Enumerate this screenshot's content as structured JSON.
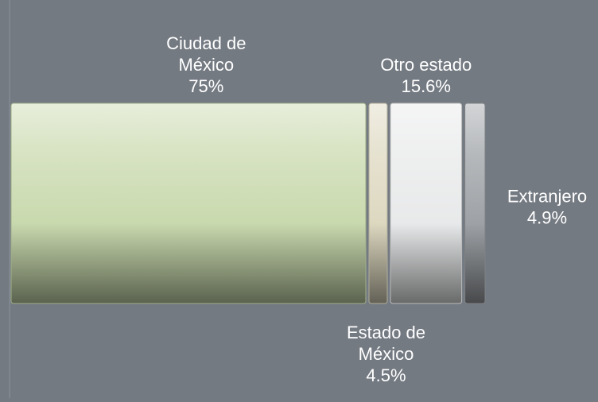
{
  "chart_data": {
    "type": "bar",
    "orientation": "horizontal-stacked",
    "categories": [
      "Ciudad de México",
      "Estado de México",
      "Otro estado",
      "Extranjero"
    ],
    "values": [
      75,
      4.5,
      15.6,
      4.9
    ],
    "unit": "%",
    "data_labels": [
      {
        "lines": [
          "Ciudad de",
          "México"
        ],
        "value_text": "75%",
        "placement": "above"
      },
      {
        "lines": [
          "Estado de",
          "México"
        ],
        "value_text": "4.5%",
        "placement": "below"
      },
      {
        "lines": [
          "Otro estado"
        ],
        "value_text": "15.6%",
        "placement": "above"
      },
      {
        "lines": [
          "Extranjero"
        ],
        "value_text": "4.9%",
        "placement": "right"
      }
    ],
    "colors": [
      "#c9d9ae",
      "#ddd8c0",
      "#e8e9ea",
      "#9ea2a6"
    ],
    "title": "",
    "xlabel": "",
    "ylabel": "",
    "grid": false,
    "legend": "none"
  }
}
